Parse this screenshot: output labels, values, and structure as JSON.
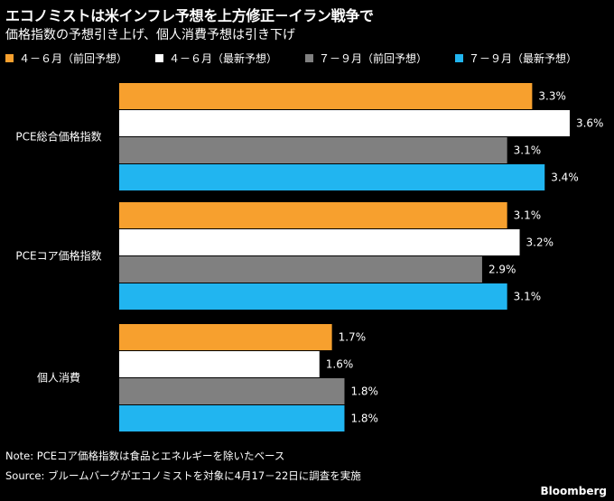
{
  "header": {
    "title": "エコノミストは米インフレ予想を上方修正－イラン戦争で",
    "subtitle": "価格指数の予想引き上げ、個人消費予想は引き下げ"
  },
  "chart_data": {
    "type": "bar",
    "orientation": "horizontal",
    "title": "エコノミストは米インフレ予想を上方修正－イラン戦争で",
    "subtitle": "価格指数の予想引き上げ、個人消費予想は引き下げ",
    "categories": [
      "PCE総合価格指数",
      "PCEコア価格指数",
      "個人消費"
    ],
    "series": [
      {
        "name": "４－６月（前回予想）",
        "color": "#f7a02e",
        "values": [
          3.3,
          3.1,
          1.7
        ],
        "labels": [
          "3.3%",
          "3.1%",
          "1.7%"
        ]
      },
      {
        "name": "４－６月（最新予想）",
        "color": "#ffffff",
        "values": [
          3.6,
          3.2,
          1.6
        ],
        "labels": [
          "3.6%",
          "3.2%",
          "1.6%"
        ]
      },
      {
        "name": "７－９月（前回予想）",
        "color": "#808080",
        "values": [
          3.1,
          2.9,
          1.8
        ],
        "labels": [
          "3.1%",
          "2.9%",
          "1.8%"
        ]
      },
      {
        "name": "７－９月（最新予想）",
        "color": "#21b5f0",
        "values": [
          3.4,
          3.1,
          1.8
        ],
        "labels": [
          "3.4%",
          "3.1%",
          "1.8%"
        ]
      }
    ],
    "xlim": [
      0,
      3.6
    ],
    "legend_position": "top",
    "grid": false
  },
  "footer": {
    "note": "Note: PCEコア価格指数は食品とエネルギーを除いたベース",
    "source": "Source: ブルームバーグがエコノミストを対象に4月17－22日に調査を実施",
    "brand": "Bloomberg"
  }
}
